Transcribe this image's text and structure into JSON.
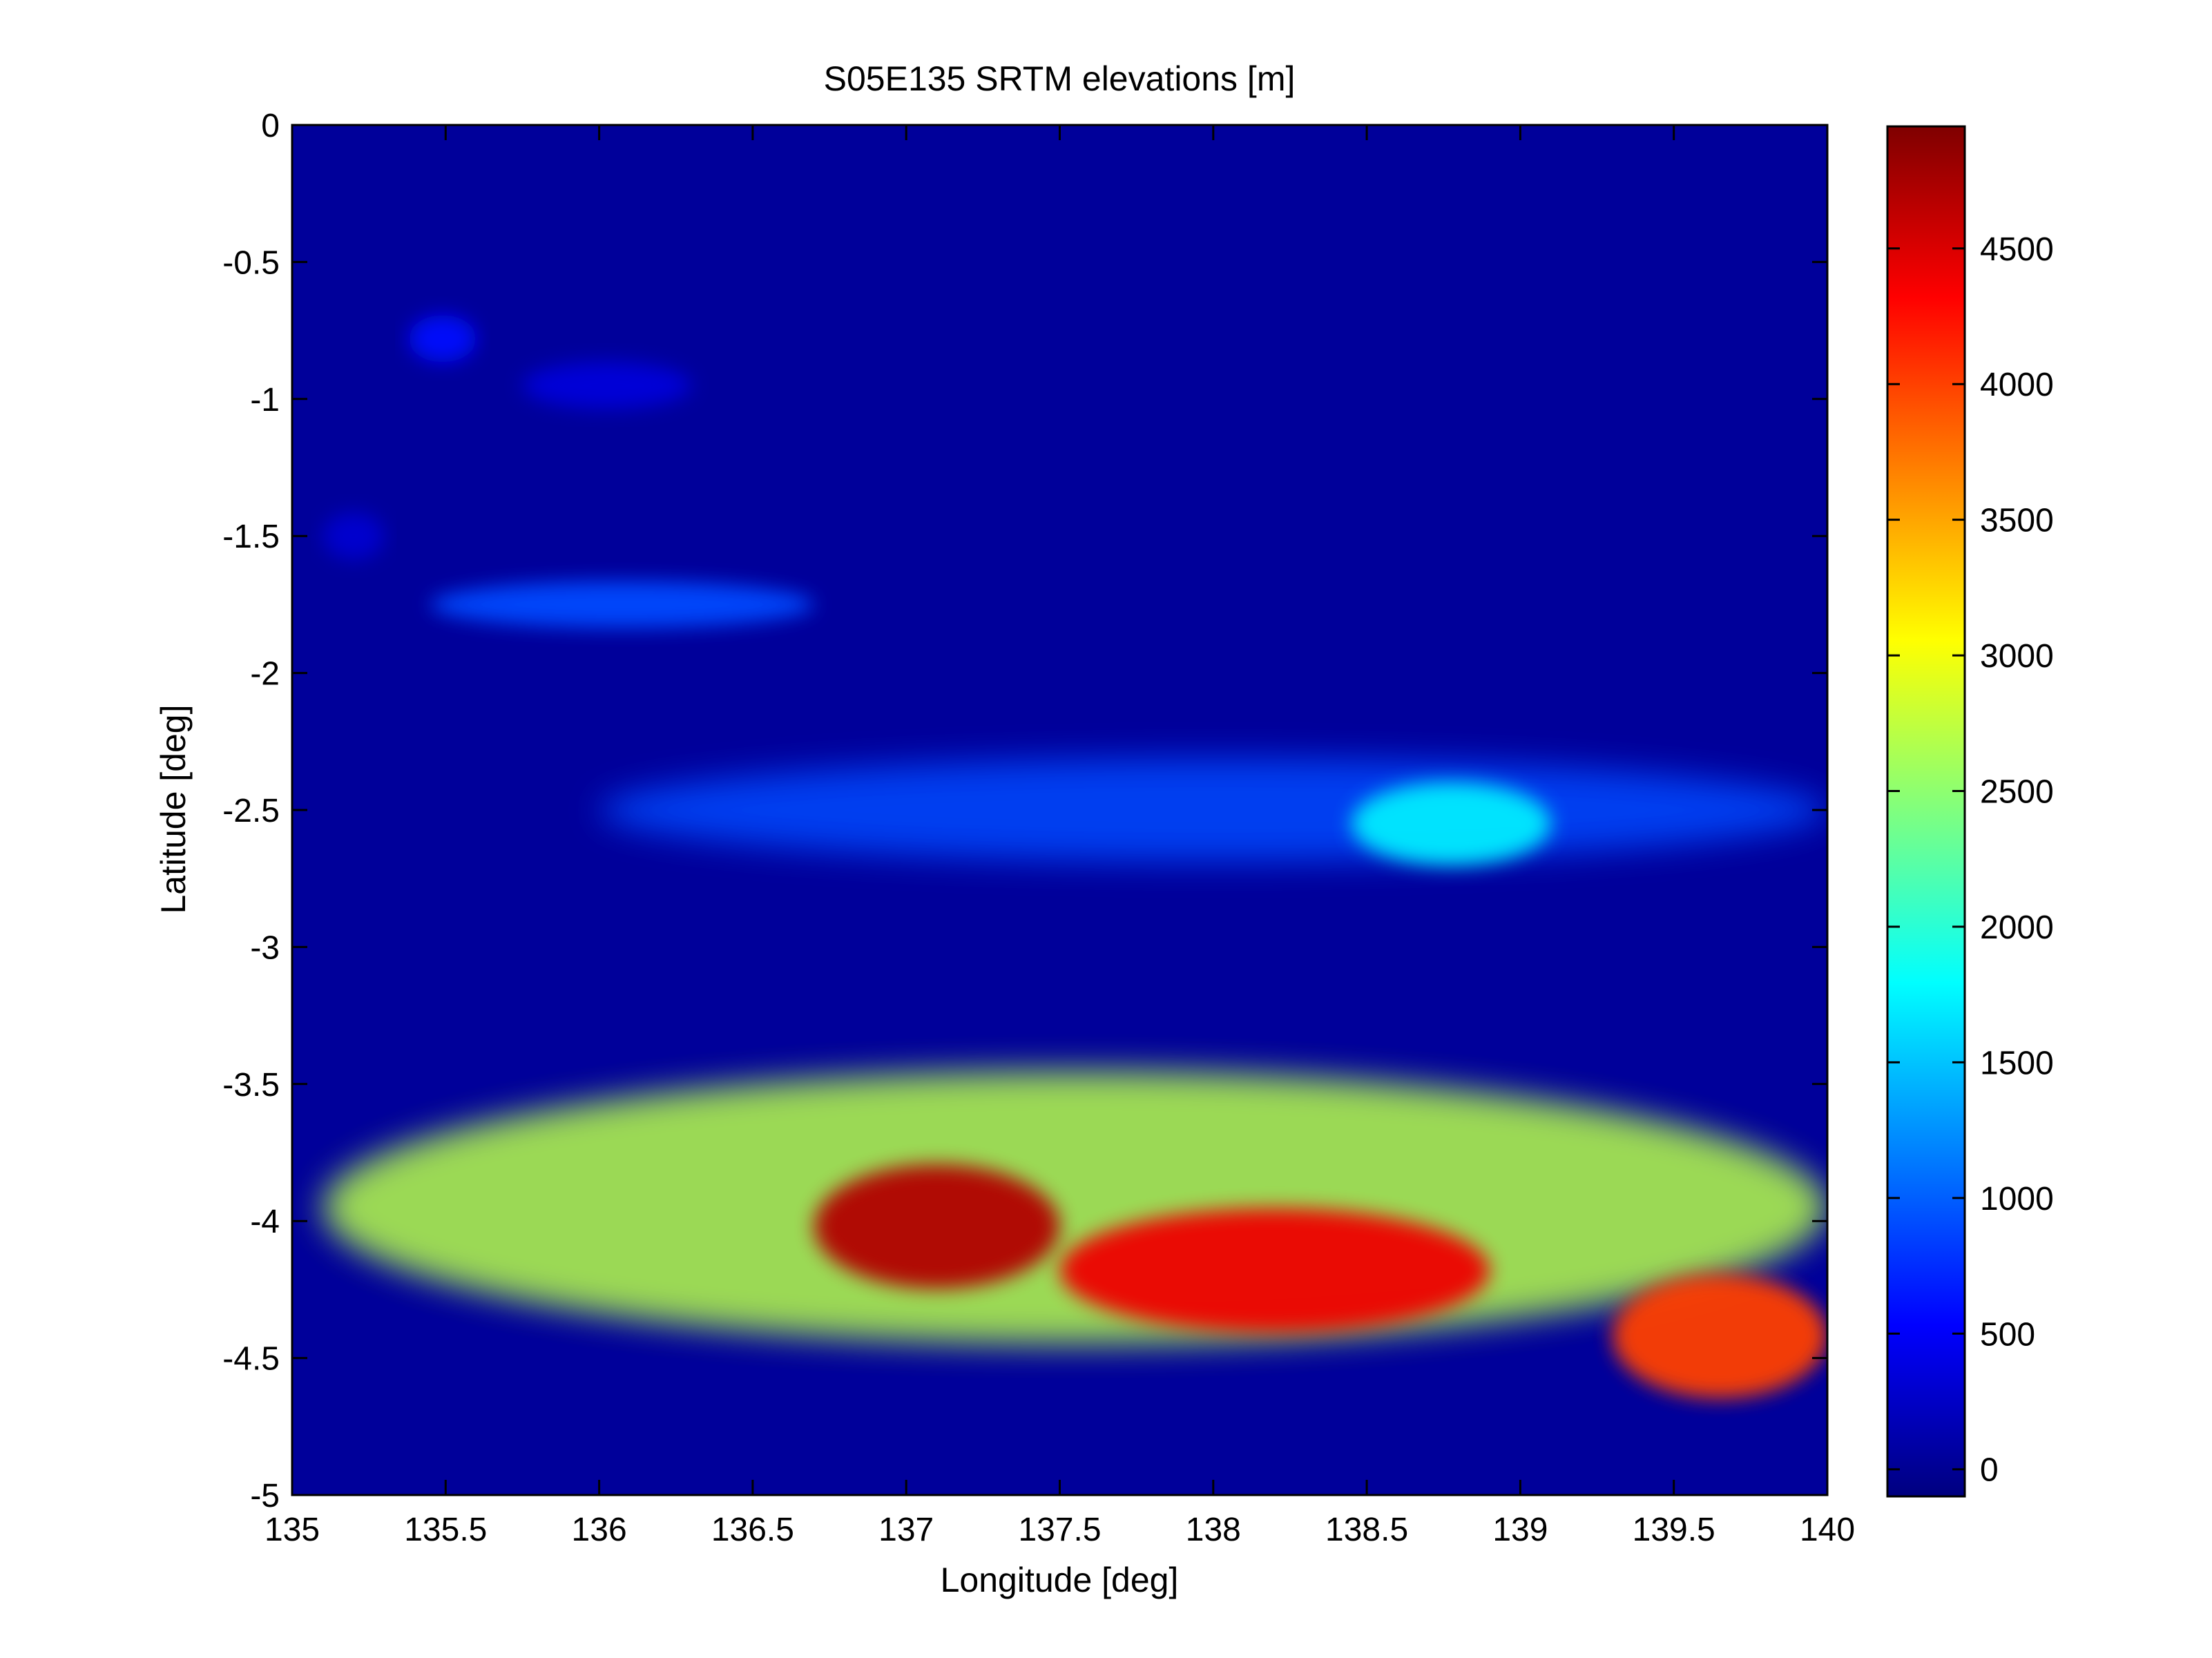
{
  "chart_data": {
    "type": "heatmap",
    "title": "S05E135 SRTM elevations [m]",
    "xlabel": "Longitude [deg]",
    "ylabel": "Latitude [deg]",
    "xlim": [
      135,
      140
    ],
    "ylim": [
      -5,
      0
    ],
    "xticks": [
      "135",
      "135.5",
      "136",
      "136.5",
      "137",
      "137.5",
      "138",
      "138.5",
      "139",
      "139.5",
      "140"
    ],
    "yticks": [
      "0",
      "-0.5",
      "-1",
      "-1.5",
      "-2",
      "-2.5",
      "-3",
      "-3.5",
      "-4",
      "-4.5",
      "-5"
    ],
    "colorbar": {
      "range": [
        -100,
        4950
      ],
      "ticks": [
        "0",
        "500",
        "1000",
        "1500",
        "2000",
        "2500",
        "3000",
        "3500",
        "4000",
        "4500"
      ],
      "colormap": "jet"
    },
    "features": [
      {
        "feature": "island",
        "from_lon": 135.38,
        "to_lon": 135.6,
        "lat": -0.78,
        "elevation_m": 600
      },
      {
        "feature": "island",
        "from_lon": 135.75,
        "to_lon": 136.3,
        "lat": -0.95,
        "elevation_m": 350
      },
      {
        "feature": "island",
        "from_lon": 135.1,
        "to_lon": 135.3,
        "lat": -1.5,
        "elevation_m": 300
      },
      {
        "feature": "island ridge",
        "from_lon": 135.45,
        "to_lon": 136.7,
        "lat": -1.75,
        "elevation_m": 900
      },
      {
        "feature": "northern ranges",
        "from_lon": 136.0,
        "to_lon": 140.0,
        "lat": -2.5,
        "elevation_m": 900
      },
      {
        "feature": "northern peak",
        "from_lon": 138.45,
        "to_lon": 139.1,
        "lat": -2.55,
        "elevation_m": 1700
      },
      {
        "feature": "highlands",
        "from_lon": 135.1,
        "to_lon": 140.0,
        "lat": -3.95,
        "elevation_m": 2700
      },
      {
        "feature": "main range",
        "from_lon": 136.7,
        "to_lon": 137.5,
        "lat": -4.02,
        "elevation_m": 4700
      },
      {
        "feature": "main range",
        "from_lon": 137.5,
        "to_lon": 138.9,
        "lat": -4.18,
        "elevation_m": 4400
      },
      {
        "feature": "eastern peaks",
        "from_lon": 139.3,
        "to_lon": 140.0,
        "lat": -4.42,
        "elevation_m": 4000
      }
    ]
  }
}
